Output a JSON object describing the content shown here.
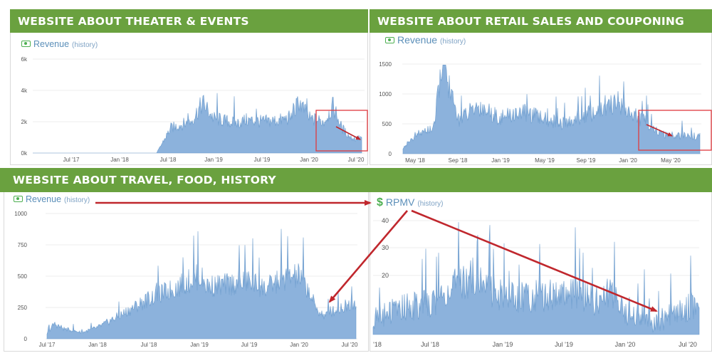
{
  "panels": {
    "theater": {
      "heading": "WEBSITE ABOUT THEATER & EVENTS",
      "metric": "Revenue",
      "metric_link": "(history)",
      "metric_icon": "money-icon"
    },
    "retail": {
      "heading": "WEBSITE ABOUT RETAIL SALES AND COUPONING",
      "metric": "Revenue",
      "metric_link": "(history)",
      "metric_icon": "money-icon"
    },
    "travel": {
      "heading": "WEBSITE ABOUT TRAVEL, FOOD, HISTORY",
      "metric": "Revenue",
      "metric_link": "(history)",
      "metric_icon": "money-icon"
    },
    "rpmv": {
      "heading": "",
      "metric": "RPMV",
      "metric_link": "(history)",
      "metric_icon": "dollar-icon"
    }
  },
  "colors": {
    "banner": "#6aa13f",
    "series_fill": "#8cb2dc",
    "series_line": "#6c9ccd",
    "annotation": "#c0272d",
    "highlight_box": "#e0393e"
  },
  "chart_data": [
    {
      "id": "theater",
      "type": "area",
      "title": "Revenue",
      "x_ticks": [
        "Jul '17",
        "Jan '18",
        "Jul '18",
        "Jan '19",
        "Jul '19",
        "Jan '20",
        "Jul '20"
      ],
      "y_ticks": [
        "0k",
        "2k",
        "4k",
        "6k"
      ],
      "ylim": [
        0,
        6000
      ],
      "grid": true,
      "series": [
        {
          "x": [
            "Apr '17",
            "Jul '17",
            "Oct '17",
            "Jan '18",
            "Apr '18",
            "Jun '18",
            "Jul '18",
            "Sep '18",
            "Nov '18",
            "Jan '19",
            "Mar '19",
            "May '19",
            "Jul '19",
            "Sep '19",
            "Nov '19",
            "Dec '19",
            "Jan '20",
            "Feb '20",
            "Mar '20",
            "Apr '20",
            "May '20",
            "Jun '20",
            "Jul '20"
          ],
          "values": [
            0,
            0,
            0,
            0,
            0,
            0,
            1600,
            2000,
            3200,
            2200,
            1900,
            2100,
            2000,
            2100,
            2300,
            3300,
            2200,
            2000,
            3000,
            1600,
            1000,
            900,
            1000
          ]
        }
      ],
      "annotations": [
        {
          "kind": "box",
          "region": "Jan '20 – Jul '20"
        },
        {
          "kind": "arrow",
          "direction": "down"
        }
      ]
    },
    {
      "id": "retail",
      "type": "area",
      "title": "Revenue",
      "x_ticks": [
        "May '18",
        "Sep '18",
        "Jan '19",
        "May '19",
        "Sep '19",
        "Jan '20",
        "May '20"
      ],
      "y_ticks": [
        "0",
        "500",
        "1000",
        "1500"
      ],
      "ylim": [
        0,
        1500
      ],
      "grid": true,
      "series": [
        {
          "x": [
            "Mar '18",
            "May '18",
            "Jul '18",
            "Aug '18",
            "Sep '18",
            "Nov '18",
            "Jan '19",
            "Mar '19",
            "May '19",
            "Jul '19",
            "Sep '19",
            "Nov '19",
            "Dec '19",
            "Jan '20",
            "Mar '20",
            "Apr '20",
            "May '20",
            "Jul '20"
          ],
          "values": [
            100,
            300,
            450,
            1580,
            550,
            800,
            600,
            700,
            580,
            500,
            650,
            750,
            900,
            700,
            500,
            330,
            300,
            290
          ]
        }
      ],
      "annotations": [
        {
          "kind": "box",
          "region": "Feb '20 – Jul '20"
        },
        {
          "kind": "arrow",
          "direction": "down"
        }
      ]
    },
    {
      "id": "travel",
      "type": "area",
      "title": "Revenue",
      "x_ticks": [
        "Jul '17",
        "Jan '18",
        "Jul '18",
        "Jan '19",
        "Jul '19",
        "Jan '20",
        "Jul '20"
      ],
      "y_ticks": [
        "0",
        "250",
        "500",
        "750",
        "1000"
      ],
      "ylim": [
        0,
        1000
      ],
      "grid": true,
      "series": [
        {
          "x": [
            "Jul '17",
            "Aug '17",
            "Sep '17",
            "Nov '17",
            "Jan '18",
            "Apr '18",
            "Jul '18",
            "Oct '18",
            "Jan '19",
            "Feb '19",
            "Apr '19",
            "Jul '19",
            "Sep '19",
            "Nov '19",
            "Jan '20",
            "Feb '20",
            "Mar '20",
            "Apr '20",
            "May '20",
            "Jul '20"
          ],
          "values": [
            40,
            120,
            80,
            50,
            90,
            200,
            320,
            400,
            500,
            420,
            430,
            460,
            400,
            480,
            500,
            400,
            240,
            180,
            220,
            300
          ]
        }
      ]
    },
    {
      "id": "rpmv",
      "type": "area",
      "title": "RPMV",
      "x_ticks": [
        "'18",
        "Jul '18",
        "Jan '19",
        "Jul '19",
        "Jan '20",
        "Jul '20"
      ],
      "y_ticks": [
        "20",
        "30",
        "40"
      ],
      "ylim": [
        10,
        40
      ],
      "grid": true,
      "series": [
        {
          "x": [
            "Jan '18",
            "Apr '18",
            "Jul '18",
            "Oct '18",
            "Nov '18",
            "Jan '19",
            "Apr '19",
            "Jul '19",
            "Oct '19",
            "Nov '19",
            "Dec '19",
            "Jan '20",
            "Mar '20",
            "Apr '20",
            "May '20",
            "Jul '20",
            "Aug '20"
          ],
          "values": [
            14,
            17,
            18,
            24,
            25,
            20,
            20,
            21,
            19,
            20,
            22,
            15,
            15,
            13,
            15,
            17,
            19
          ]
        }
      ]
    }
  ]
}
